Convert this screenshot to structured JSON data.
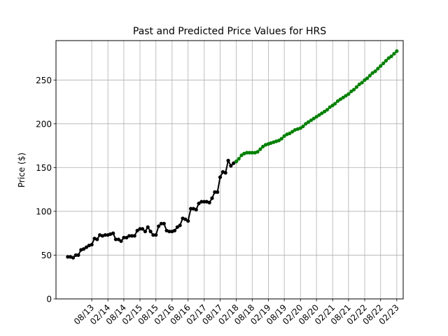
{
  "chart_data": {
    "type": "line",
    "title": "Past and Predicted Price Values for HRS",
    "xlabel": "",
    "ylabel": "Price ($)",
    "grid": true,
    "ylim": [
      0,
      295
    ],
    "yticks": [
      0,
      50,
      100,
      150,
      200,
      250
    ],
    "xlim": [
      "2012-06-20",
      "2023-04-15"
    ],
    "xticks": [
      {
        "date": "2013-08-01",
        "label": "08/13"
      },
      {
        "date": "2014-02-01",
        "label": "02/14"
      },
      {
        "date": "2014-08-01",
        "label": "08/14"
      },
      {
        "date": "2015-02-01",
        "label": "02/15"
      },
      {
        "date": "2015-08-01",
        "label": "08/15"
      },
      {
        "date": "2016-02-01",
        "label": "02/16"
      },
      {
        "date": "2016-08-01",
        "label": "08/16"
      },
      {
        "date": "2017-02-01",
        "label": "02/17"
      },
      {
        "date": "2017-08-01",
        "label": "08/17"
      },
      {
        "date": "2018-02-01",
        "label": "02/18"
      },
      {
        "date": "2018-08-01",
        "label": "08/18"
      },
      {
        "date": "2019-02-01",
        "label": "02/19"
      },
      {
        "date": "2019-08-01",
        "label": "08/19"
      },
      {
        "date": "2020-02-01",
        "label": "02/20"
      },
      {
        "date": "2020-08-01",
        "label": "08/20"
      },
      {
        "date": "2021-02-01",
        "label": "02/21"
      },
      {
        "date": "2021-08-01",
        "label": "08/21"
      },
      {
        "date": "2022-02-01",
        "label": "02/22"
      },
      {
        "date": "2022-08-01",
        "label": "08/22"
      },
      {
        "date": "2023-02-01",
        "label": "02/23"
      }
    ],
    "series": [
      {
        "color": "#000000",
        "x": [
          "2012-11-01",
          "2012-12-01",
          "2013-01-01",
          "2013-02-01",
          "2013-03-01",
          "2013-04-01",
          "2013-05-01",
          "2013-06-01",
          "2013-07-01",
          "2013-08-01",
          "2013-09-01",
          "2013-10-01",
          "2013-11-01",
          "2013-12-01",
          "2014-01-01",
          "2014-02-01",
          "2014-03-01",
          "2014-04-01",
          "2014-05-01",
          "2014-06-01",
          "2014-07-01",
          "2014-08-01",
          "2014-09-01",
          "2014-10-01",
          "2014-11-01",
          "2014-12-01",
          "2015-01-01",
          "2015-02-01",
          "2015-03-01",
          "2015-04-01",
          "2015-05-01",
          "2015-06-01",
          "2015-07-01",
          "2015-08-01",
          "2015-09-01",
          "2015-10-01",
          "2015-11-01",
          "2015-12-01",
          "2016-01-01",
          "2016-02-01",
          "2016-03-01",
          "2016-04-01",
          "2016-05-01",
          "2016-06-01",
          "2016-07-01",
          "2016-08-01",
          "2016-09-01",
          "2016-10-01",
          "2016-11-01",
          "2016-12-01",
          "2017-01-01",
          "2017-02-01",
          "2017-03-01",
          "2017-04-01",
          "2017-05-01",
          "2017-06-01",
          "2017-07-01",
          "2017-08-01",
          "2017-09-01",
          "2017-10-01",
          "2017-11-01",
          "2017-12-01",
          "2018-01-01",
          "2018-02-01"
        ],
        "values": [
          48,
          48,
          47,
          50,
          50,
          56,
          57,
          59,
          61,
          62,
          69,
          68,
          73,
          72,
          73,
          73,
          74,
          75,
          68,
          68,
          66,
          70,
          70,
          72,
          72,
          72,
          78,
          80,
          80,
          77,
          82,
          77,
          73,
          73,
          83,
          86,
          86,
          78,
          77,
          77,
          78,
          82,
          84,
          92,
          91,
          89,
          103,
          103,
          102,
          109,
          111,
          111,
          111,
          110,
          115,
          122,
          122,
          139,
          145,
          144,
          158,
          152,
          155,
          157
        ]
      },
      {
        "color": "#008000",
        "x": [
          "2018-02-01",
          "2018-03-01",
          "2018-04-01",
          "2018-05-01",
          "2018-06-01",
          "2018-07-01",
          "2018-08-01",
          "2018-09-01",
          "2018-10-01",
          "2018-11-01",
          "2018-12-01",
          "2019-01-01",
          "2019-02-01",
          "2019-03-01",
          "2019-04-01",
          "2019-05-01",
          "2019-06-01",
          "2019-07-01",
          "2019-08-01",
          "2019-09-01",
          "2019-10-01",
          "2019-11-01",
          "2019-12-01",
          "2020-01-01",
          "2020-02-01",
          "2020-03-01",
          "2020-04-01",
          "2020-05-01",
          "2020-06-01",
          "2020-07-01",
          "2020-08-01",
          "2020-09-01",
          "2020-10-01",
          "2020-11-01",
          "2020-12-01",
          "2021-01-01",
          "2021-02-01",
          "2021-03-01",
          "2021-04-01",
          "2021-05-01",
          "2021-06-01",
          "2021-07-01",
          "2021-08-01",
          "2021-09-01",
          "2021-10-01",
          "2021-11-01",
          "2021-12-01",
          "2022-01-01",
          "2022-02-01",
          "2022-03-01",
          "2022-04-01",
          "2022-05-01",
          "2022-06-01",
          "2022-07-01",
          "2022-08-01",
          "2022-09-01",
          "2022-10-01",
          "2022-11-01",
          "2022-12-01",
          "2023-01-01",
          "2023-02-01"
        ],
        "values": [
          157,
          160,
          164,
          166,
          167,
          167,
          167,
          167,
          168,
          171,
          174,
          176,
          177,
          178,
          179,
          180,
          181,
          183,
          186,
          188,
          189,
          191,
          193,
          194,
          195,
          197,
          200,
          202,
          204,
          206,
          208,
          210,
          212,
          214,
          216,
          219,
          221,
          223,
          226,
          228,
          230,
          232,
          234,
          237,
          239,
          242,
          245,
          247,
          250,
          252,
          255,
          258,
          260,
          263,
          266,
          269,
          272,
          275,
          277,
          280,
          283
        ]
      }
    ]
  }
}
